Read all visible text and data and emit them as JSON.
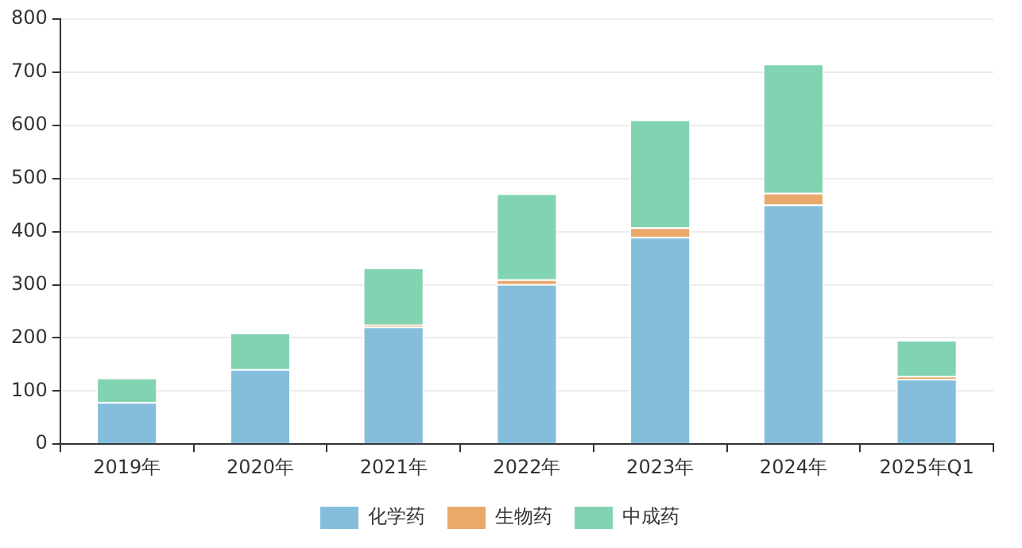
{
  "chart_data": {
    "type": "bar",
    "stacked": true,
    "categories": [
      "2019年",
      "2020年",
      "2021年",
      "2022年",
      "2023年",
      "2024年",
      "2025年Q1"
    ],
    "series": [
      {
        "name": "化学药",
        "color": "#85bedb",
        "values": [
          79,
          141,
          221,
          301,
          390,
          451,
          123
        ]
      },
      {
        "name": "生物药",
        "color": "#e9a96a",
        "values": [
          null,
          null,
          4,
          9,
          18,
          22,
          5
        ]
      },
      {
        "name": "中成药",
        "color": "#82d3b1",
        "values": [
          46,
          69,
          107,
          162,
          203,
          243,
          68
        ]
      }
    ],
    "ylim": [
      0,
      800
    ],
    "yticks": [
      0,
      100,
      200,
      300,
      400,
      500,
      600,
      700,
      800
    ],
    "grid": "y",
    "legend": "bottom"
  }
}
